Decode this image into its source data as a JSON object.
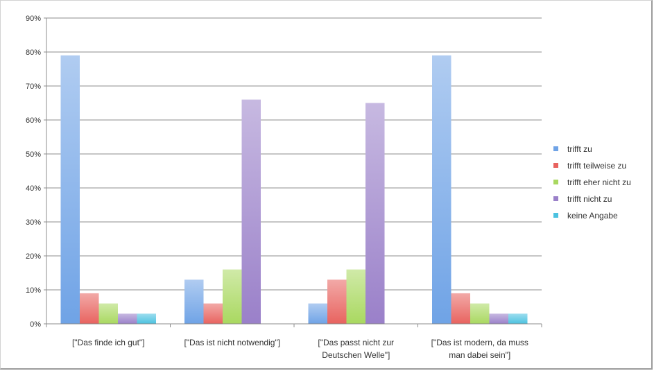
{
  "chart_data": {
    "type": "bar",
    "title": "",
    "xlabel": "",
    "ylabel": "",
    "ylim": [
      0,
      90
    ],
    "y_ticks": [
      "0%",
      "10%",
      "20%",
      "30%",
      "40%",
      "50%",
      "60%",
      "70%",
      "80%",
      "90%"
    ],
    "grid": true,
    "legend_position": "right",
    "categories": [
      [
        "[\"Das finde ich gut\"]"
      ],
      [
        "[\"Das ist nicht notwendig\"]"
      ],
      [
        "[\"Das passt nicht zur",
        "Deutschen Welle\"]"
      ],
      [
        "[\"Das ist modern, da muss",
        "man dabei sein\"]"
      ]
    ],
    "series": [
      {
        "name": "trifft zu",
        "color": "#6fa3e6",
        "values": [
          79,
          13,
          6,
          79
        ]
      },
      {
        "name": "trifft teilweise zu",
        "color": "#e8635f",
        "values": [
          9,
          6,
          13,
          9
        ]
      },
      {
        "name": "trifft eher nicht zu",
        "color": "#a9d860",
        "values": [
          6,
          16,
          16,
          6
        ]
      },
      {
        "name": "trifft nicht zu",
        "color": "#9a80c9",
        "values": [
          3,
          66,
          65,
          3
        ]
      },
      {
        "name": "keine Angabe",
        "color": "#4cc2e0",
        "values": [
          3,
          0,
          0,
          3
        ]
      }
    ]
  }
}
